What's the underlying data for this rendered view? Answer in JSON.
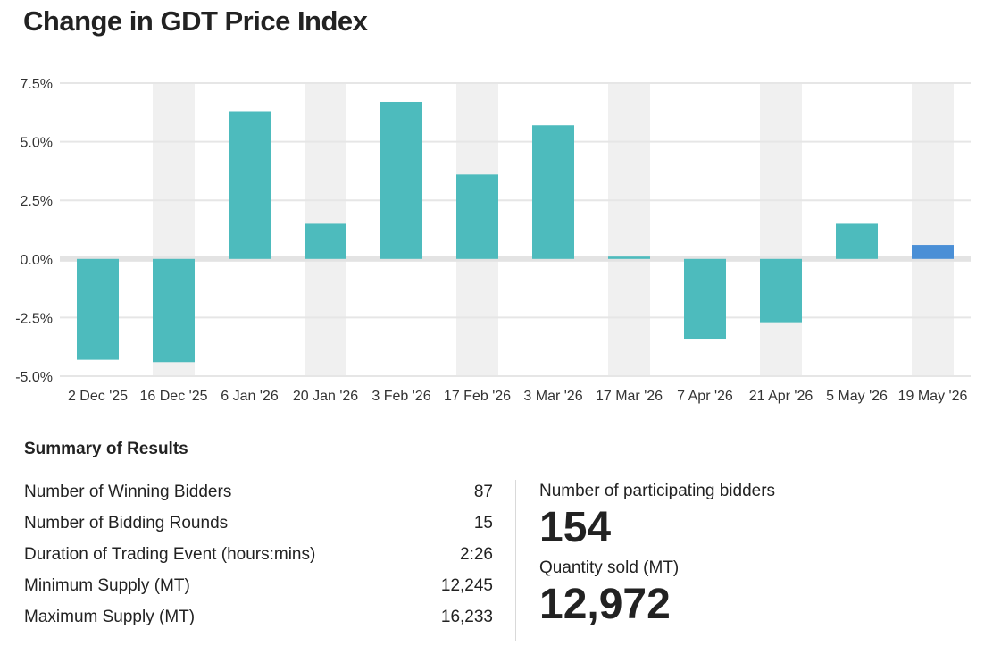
{
  "title": "Change in GDT Price Index",
  "chart_data": {
    "type": "bar",
    "categories": [
      "2 Dec '25",
      "16 Dec '25",
      "6 Jan '26",
      "20 Jan '26",
      "3 Feb '26",
      "17 Feb '26",
      "3 Mar '26",
      "17 Mar '26",
      "7 Apr '26",
      "21 Apr '26",
      "5 May '26",
      "19 May '26"
    ],
    "values": [
      -4.3,
      -4.4,
      6.3,
      1.5,
      6.7,
      3.6,
      5.7,
      0.1,
      -3.4,
      -2.7,
      1.5,
      0.6
    ],
    "highlight_index": 11,
    "yticks": [
      "7.5%",
      "5.0%",
      "2.5%",
      "0.0%",
      "-2.5%",
      "-5.0%"
    ],
    "ytick_values": [
      7.5,
      5.0,
      2.5,
      0.0,
      -2.5,
      -5.0
    ],
    "ylim": [
      -5.0,
      7.5
    ],
    "colors": {
      "bar": "#4dbbbd",
      "highlight": "#4a8fd6",
      "band": "#f0f0f0",
      "zero_band": "#e3e3e3"
    }
  },
  "summary": {
    "heading": "Summary of Results",
    "rows": [
      {
        "label": "Number of Winning Bidders",
        "value": "87"
      },
      {
        "label": "Number of Bidding Rounds",
        "value": "15"
      },
      {
        "label": "Duration of Trading Event (hours:mins)",
        "value": "2:26"
      },
      {
        "label": "Minimum Supply (MT)",
        "value": "12,245"
      },
      {
        "label": "Maximum Supply (MT)",
        "value": "16,233"
      }
    ]
  },
  "stats": {
    "bidders_label": "Number of participating bidders",
    "bidders_value": "154",
    "quantity_label": "Quantity sold (MT)",
    "quantity_value": "12,972"
  }
}
